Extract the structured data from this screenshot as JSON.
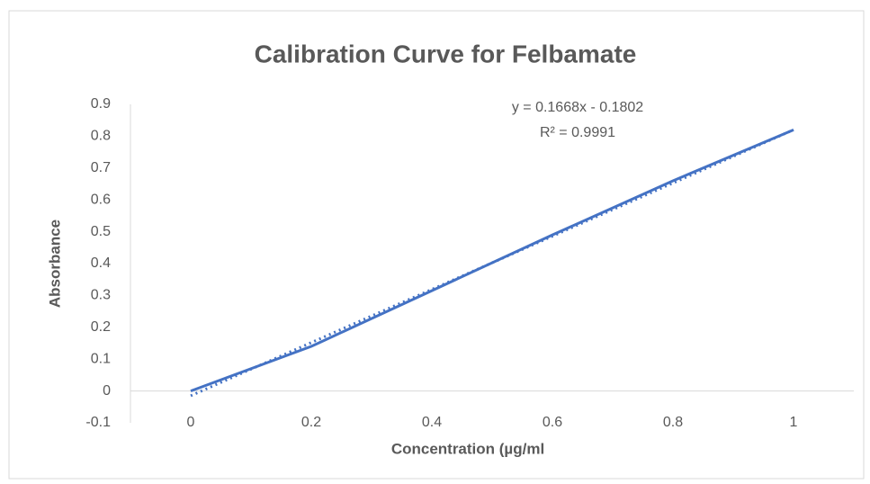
{
  "chart_data": {
    "type": "line",
    "title": "Calibration Curve for Felbamate",
    "x_label": "Concentration (µg/ml",
    "y_label": "Absorbance",
    "annotations": [
      "y = 0.1668x - 0.1802",
      "R² = 0.9991"
    ],
    "x": [
      0,
      0.2,
      0.4,
      0.6,
      0.8,
      1
    ],
    "series": [
      {
        "color": "#4472c4",
        "values": [
          0,
          0.14,
          0.315,
          0.49,
          0.66,
          0.82
        ]
      }
    ],
    "trendline": {
      "color": "#4472c4",
      "x": [
        0,
        1
      ],
      "values": [
        -0.015,
        0.82
      ]
    },
    "xlim": [
      -0.1,
      1.1
    ],
    "xticks": [
      0,
      0.2,
      0.4,
      0.6,
      0.8,
      1
    ],
    "ylim": [
      -0.1,
      0.9
    ],
    "yticks": [
      -0.1,
      0,
      0.1,
      0.2,
      0.3,
      0.4,
      0.5,
      0.6,
      0.7,
      0.8,
      0.9
    ],
    "grid": false
  }
}
